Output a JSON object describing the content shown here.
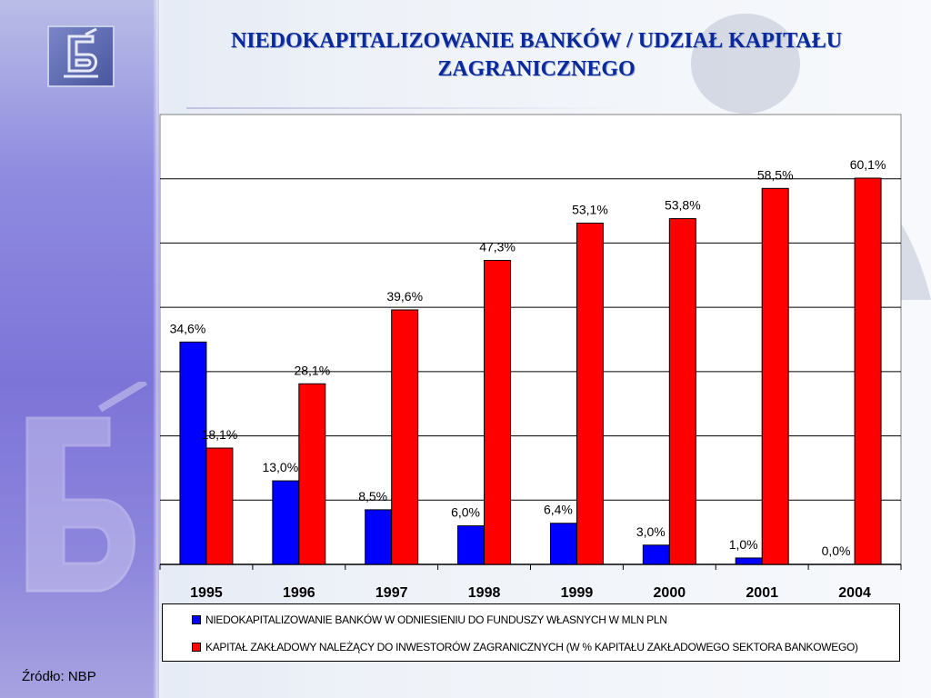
{
  "page": {
    "title": "NIEDOKAPITALIZOWANIE BANKÓW / UDZIAŁ KAPITAŁU ZAGRANICZNEGO",
    "source": "Źródło: NBP"
  },
  "colors": {
    "series_blue": "#0000ff",
    "series_red": "#ff0000",
    "title": "#0a2a9c",
    "sidebar": "#7d74d8"
  },
  "icons": [
    "bank-logo-icon"
  ],
  "chart_data": {
    "type": "bar",
    "categories": [
      "1995",
      "1996",
      "1997",
      "1998",
      "1999",
      "2000",
      "2001",
      "2004"
    ],
    "series": [
      {
        "name": "NIEDOKAPITALIZOWANIE BANKÓW W ODNIESIENIU DO FUNDUSZY WŁASNYCH W MLN PLN",
        "color": "#0000ff",
        "values": [
          34.6,
          13.0,
          8.5,
          6.0,
          6.4,
          3.0,
          1.0,
          0.0
        ],
        "labels": [
          "34,6%",
          "13,0%",
          "8,5%",
          "6,0%",
          "6,4%",
          "3,0%",
          "1,0%",
          "0,0%"
        ]
      },
      {
        "name": "KAPITAŁ ZAKŁADOWY NALEŻĄCY DO INWESTORÓW ZAGRANICZNYCH (W % KAPITAŁU ZAKŁADOWEGO SEKTORA BANKOWEGO)",
        "color": "#ff0000",
        "values": [
          18.1,
          28.1,
          39.6,
          47.3,
          53.1,
          53.8,
          58.5,
          60.1
        ],
        "labels": [
          "18,1%",
          "28,1%",
          "39,6%",
          "47,3%",
          "53,1%",
          "53,8%",
          "58,5%",
          "60,1%"
        ]
      }
    ],
    "title": "",
    "xlabel": "",
    "ylabel": "",
    "ylim": [
      0,
      70
    ],
    "grid": true,
    "legend_position": "bottom"
  }
}
